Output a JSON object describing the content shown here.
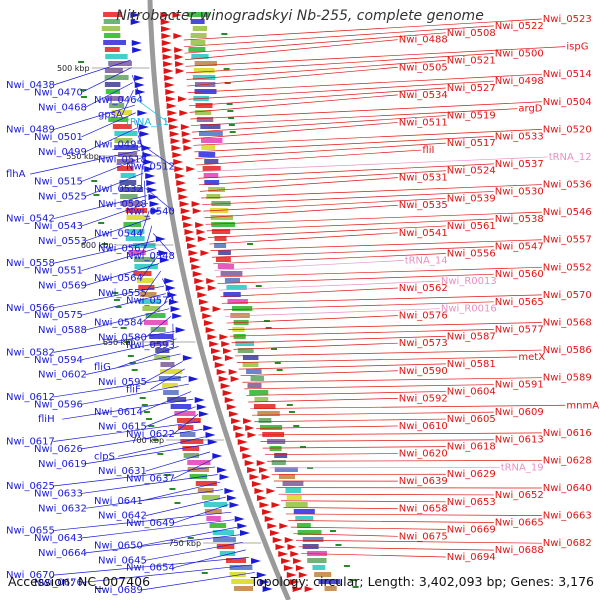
{
  "title": "Nitrobacter winogradskyi Nb-255, complete genome",
  "footer": {
    "accession": "Accession: NC_007406",
    "topology": "Topology: circular; Length: 3,402,093 bp; Genes: 3,176"
  },
  "colors": {
    "left_gene": "#1a1adb",
    "right_gene": "#e01414",
    "rna": "#e890c4",
    "trna_left": "#18b8e0",
    "backbone": "#9a9a9a"
  },
  "ticks": [
    "500 kbp",
    "550 kbp",
    "600 kbp",
    "650 kbp",
    "700 kbp",
    "750 kbp"
  ],
  "left_labels": [
    {
      "text": "Nwi_0438",
      "type": "gene"
    },
    {
      "text": "Nwi_0470",
      "type": "gene"
    },
    {
      "text": "Nwi_0464",
      "type": "gene"
    },
    {
      "text": "Nwi_0468",
      "type": "gene"
    },
    {
      "text": "gpsA",
      "type": "gene"
    },
    {
      "text": "tRNA_11",
      "type": "trna"
    },
    {
      "text": "Nwi_0489",
      "type": "gene"
    },
    {
      "text": "Nwi_0501",
      "type": "gene"
    },
    {
      "text": "Nwi_0495",
      "type": "gene"
    },
    {
      "text": "Nwi_0499",
      "type": "gene"
    },
    {
      "text": "Nwi_0518",
      "type": "gene"
    },
    {
      "text": "Nwi_0512",
      "type": "gene"
    },
    {
      "text": "flhA",
      "type": "gene"
    },
    {
      "text": "Nwi_0515",
      "type": "gene"
    },
    {
      "text": "Nwi_0532",
      "type": "gene"
    },
    {
      "text": "Nwi_0525",
      "type": "gene"
    },
    {
      "text": "Nwi_0528",
      "type": "gene"
    },
    {
      "text": "Nwi_0540",
      "type": "gene"
    },
    {
      "text": "Nwi_0542",
      "type": "gene"
    },
    {
      "text": "Nwi_0543",
      "type": "gene"
    },
    {
      "text": "Nwi_0544",
      "type": "gene"
    },
    {
      "text": "Nwi_0553",
      "type": "gene"
    },
    {
      "text": "Nwi_0567",
      "type": "gene"
    },
    {
      "text": "Nwi_0548",
      "type": "gene"
    },
    {
      "text": "Nwi_0558",
      "type": "gene"
    },
    {
      "text": "Nwi_0551",
      "type": "gene"
    },
    {
      "text": "Nwi_0564",
      "type": "gene"
    },
    {
      "text": "Nwi_0569",
      "type": "gene"
    },
    {
      "text": "Nwi_0555",
      "type": "gene"
    },
    {
      "text": "Nwi_0574",
      "type": "gene"
    },
    {
      "text": "Nwi_0566",
      "type": "gene"
    },
    {
      "text": "Nwi_0575",
      "type": "gene"
    },
    {
      "text": "Nwi_0584",
      "type": "gene"
    },
    {
      "text": "Nwi_0588",
      "type": "gene"
    },
    {
      "text": "Nwi_0580",
      "type": "gene"
    },
    {
      "text": "Nwi_0593",
      "type": "gene"
    },
    {
      "text": "Nwi_0582",
      "type": "gene"
    },
    {
      "text": "Nwi_0594",
      "type": "gene"
    },
    {
      "text": "fliG",
      "type": "gene"
    },
    {
      "text": "Nwi_0602",
      "type": "gene"
    },
    {
      "text": "Nwi_0595",
      "type": "gene"
    },
    {
      "text": "fliF",
      "type": "gene"
    },
    {
      "text": "Nwi_0612",
      "type": "gene"
    },
    {
      "text": "Nwi_0596",
      "type": "gene"
    },
    {
      "text": "Nwi_0614",
      "type": "gene"
    },
    {
      "text": "fliH",
      "type": "gene"
    },
    {
      "text": "Nwi_0615",
      "type": "gene"
    },
    {
      "text": "Nwi_0622",
      "type": "gene"
    },
    {
      "text": "Nwi_0617",
      "type": "gene"
    },
    {
      "text": "Nwi_0626",
      "type": "gene"
    },
    {
      "text": "clpS",
      "type": "gene"
    },
    {
      "text": "Nwi_0619",
      "type": "gene"
    },
    {
      "text": "Nwi_0631",
      "type": "gene"
    },
    {
      "text": "Nwi_0637",
      "type": "gene"
    },
    {
      "text": "Nwi_0625",
      "type": "gene"
    },
    {
      "text": "Nwi_0633",
      "type": "gene"
    },
    {
      "text": "Nwi_0641",
      "type": "gene"
    },
    {
      "text": "Nwi_0632",
      "type": "gene"
    },
    {
      "text": "Nwi_0642",
      "type": "gene"
    },
    {
      "text": "Nwi_0649",
      "type": "gene"
    },
    {
      "text": "Nwi_0655",
      "type": "gene"
    },
    {
      "text": "Nwi_0643",
      "type": "gene"
    },
    {
      "text": "Nwi_0650",
      "type": "gene"
    },
    {
      "text": "Nwi_0664",
      "type": "gene"
    },
    {
      "text": "Nwi_0645",
      "type": "gene"
    },
    {
      "text": "Nwi_0654",
      "type": "gene"
    },
    {
      "text": "Nwi_0670",
      "type": "gene"
    },
    {
      "text": "Nwi_0676",
      "type": "gene"
    },
    {
      "text": "Nwi_0689",
      "type": "gene"
    }
  ],
  "right_labels": [
    {
      "text": "Nwi_0523",
      "type": "gene"
    },
    {
      "text": "Nwi_0522",
      "type": "gene"
    },
    {
      "text": "Nwi_0508",
      "type": "gene"
    },
    {
      "text": "Nwi_0488",
      "type": "gene"
    },
    {
      "text": "ispG",
      "type": "gene"
    },
    {
      "text": "Nwi_0500",
      "type": "gene"
    },
    {
      "text": "Nwi_0521",
      "type": "gene"
    },
    {
      "text": "Nwi_0505",
      "type": "gene"
    },
    {
      "text": "Nwi_0514",
      "type": "gene"
    },
    {
      "text": "Nwi_0498",
      "type": "gene"
    },
    {
      "text": "Nwi_0527",
      "type": "gene"
    },
    {
      "text": "Nwi_0534",
      "type": "gene"
    },
    {
      "text": "Nwi_0504",
      "type": "gene"
    },
    {
      "text": "argD",
      "type": "gene"
    },
    {
      "text": "Nwi_0519",
      "type": "gene"
    },
    {
      "text": "Nwi_0511",
      "type": "gene"
    },
    {
      "text": "Nwi_0520",
      "type": "gene"
    },
    {
      "text": "Nwi_0533",
      "type": "gene"
    },
    {
      "text": "Nwi_0517",
      "type": "gene"
    },
    {
      "text": "fliI",
      "type": "gene"
    },
    {
      "text": "tRNA_12",
      "type": "rna"
    },
    {
      "text": "Nwi_0537",
      "type": "gene"
    },
    {
      "text": "Nwi_0524",
      "type": "gene"
    },
    {
      "text": "Nwi_0531",
      "type": "gene"
    },
    {
      "text": "Nwi_0536",
      "type": "gene"
    },
    {
      "text": "Nwi_0530",
      "type": "gene"
    },
    {
      "text": "Nwi_0539",
      "type": "gene"
    },
    {
      "text": "Nwi_0535",
      "type": "gene"
    },
    {
      "text": "Nwi_0546",
      "type": "gene"
    },
    {
      "text": "Nwi_0538",
      "type": "gene"
    },
    {
      "text": "Nwi_0561",
      "type": "gene"
    },
    {
      "text": "Nwi_0541",
      "type": "gene"
    },
    {
      "text": "Nwi_0557",
      "type": "gene"
    },
    {
      "text": "Nwi_0547",
      "type": "gene"
    },
    {
      "text": "Nwi_0556",
      "type": "gene"
    },
    {
      "text": "tRNA_14",
      "type": "rna"
    },
    {
      "text": "Nwi_0552",
      "type": "gene"
    },
    {
      "text": "Nwi_0560",
      "type": "gene"
    },
    {
      "text": "Nwi_R0013",
      "type": "rna"
    },
    {
      "text": "Nwi_0562",
      "type": "gene"
    },
    {
      "text": "Nwi_0570",
      "type": "gene"
    },
    {
      "text": "Nwi_0565",
      "type": "gene"
    },
    {
      "text": "Nwi_R0016",
      "type": "rna"
    },
    {
      "text": "Nwi_0576",
      "type": "gene"
    },
    {
      "text": "Nwi_0568",
      "type": "gene"
    },
    {
      "text": "Nwi_0577",
      "type": "gene"
    },
    {
      "text": "Nwi_0587",
      "type": "gene"
    },
    {
      "text": "Nwi_0573",
      "type": "gene"
    },
    {
      "text": "Nwi_0586",
      "type": "gene"
    },
    {
      "text": "metX",
      "type": "gene"
    },
    {
      "text": "Nwi_0581",
      "type": "gene"
    },
    {
      "text": "Nwi_0590",
      "type": "gene"
    },
    {
      "text": "Nwi_0589",
      "type": "gene"
    },
    {
      "text": "Nwi_0591",
      "type": "gene"
    },
    {
      "text": "Nwi_0604",
      "type": "gene"
    },
    {
      "text": "Nwi_0592",
      "type": "gene"
    },
    {
      "text": "mnmA",
      "type": "gene"
    },
    {
      "text": "Nwi_0609",
      "type": "gene"
    },
    {
      "text": "Nwi_0605",
      "type": "gene"
    },
    {
      "text": "Nwi_0610",
      "type": "gene"
    },
    {
      "text": "Nwi_0616",
      "type": "gene"
    },
    {
      "text": "Nwi_0613",
      "type": "gene"
    },
    {
      "text": "Nwi_0618",
      "type": "gene"
    },
    {
      "text": "Nwi_0620",
      "type": "gene"
    },
    {
      "text": "Nwi_0628",
      "type": "gene"
    },
    {
      "text": "tRNA_19",
      "type": "rna"
    },
    {
      "text": "Nwi_0629",
      "type": "gene"
    },
    {
      "text": "Nwi_0639",
      "type": "gene"
    },
    {
      "text": "Nwi_0640",
      "type": "gene"
    },
    {
      "text": "Nwi_0652",
      "type": "gene"
    },
    {
      "text": "Nwi_0653",
      "type": "gene"
    },
    {
      "text": "Nwi_0658",
      "type": "gene"
    },
    {
      "text": "Nwi_0663",
      "type": "gene"
    },
    {
      "text": "Nwi_0665",
      "type": "gene"
    },
    {
      "text": "Nwi_0669",
      "type": "gene"
    },
    {
      "text": "Nwi_0675",
      "type": "gene"
    },
    {
      "text": "Nwi_0682",
      "type": "gene"
    },
    {
      "text": "Nwi_0688",
      "type": "gene"
    },
    {
      "text": "Nwi_0694",
      "type": "gene"
    }
  ]
}
